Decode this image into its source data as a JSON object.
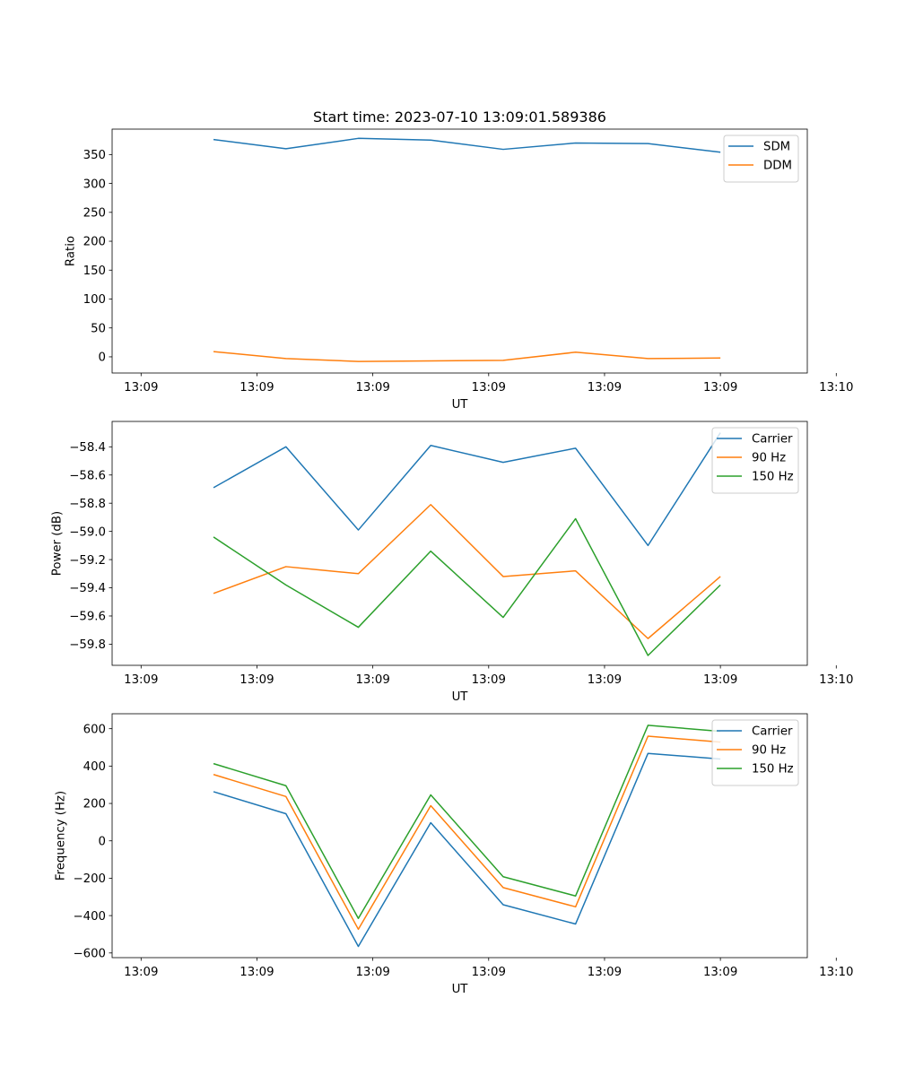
{
  "figure": {
    "title": "Start time: 2023-07-10 13:09:01.589386"
  },
  "chart_data": [
    {
      "type": "line",
      "xlabel": "UT",
      "ylabel": "Ratio",
      "x": [
        0.5,
        1.0,
        1.5,
        2.0,
        2.5,
        3.0,
        3.5,
        4.0
      ],
      "xlim": [
        -0.2,
        4.6
      ],
      "xticks": [
        0,
        0.8,
        1.6,
        2.4,
        3.2,
        4.0,
        4.8
      ],
      "xtick_labels": [
        "13:09",
        "13:09",
        "13:09",
        "13:09",
        "13:09",
        "13:09",
        "13:10"
      ],
      "ylim": [
        -28,
        394
      ],
      "yticks": [
        0,
        50,
        100,
        150,
        200,
        250,
        300,
        350
      ],
      "ytick_labels": [
        "0",
        "50",
        "100",
        "150",
        "200",
        "250",
        "300",
        "350"
      ],
      "legend": "top-right",
      "series": [
        {
          "name": "SDM",
          "color": "#1f77b4",
          "values": [
            376,
            360,
            378,
            375,
            359,
            370,
            369,
            354
          ]
        },
        {
          "name": "DDM",
          "color": "#ff7f0e",
          "values": [
            9,
            -3,
            -8,
            -7,
            -6,
            8,
            -3,
            -2
          ]
        }
      ]
    },
    {
      "type": "line",
      "xlabel": "UT",
      "ylabel": "Power (dB)",
      "x": [
        0.5,
        1.0,
        1.5,
        2.0,
        2.5,
        3.0,
        3.5,
        4.0
      ],
      "xlim": [
        -0.2,
        4.6
      ],
      "xticks": [
        0,
        0.8,
        1.6,
        2.4,
        3.2,
        4.0,
        4.8
      ],
      "xtick_labels": [
        "13:09",
        "13:09",
        "13:09",
        "13:09",
        "13:09",
        "13:09",
        "13:10"
      ],
      "ylim": [
        -59.95,
        -58.22
      ],
      "yticks": [
        -59.8,
        -59.6,
        -59.4,
        -59.2,
        -59.0,
        -58.8,
        -58.6,
        -58.4
      ],
      "ytick_labels": [
        "−59.8",
        "−59.6",
        "−59.4",
        "−59.2",
        "−59.0",
        "−58.8",
        "−58.6",
        "−58.4"
      ],
      "legend": "top-right",
      "series": [
        {
          "name": "Carrier",
          "color": "#1f77b4",
          "values": [
            -58.69,
            -58.4,
            -58.99,
            -58.39,
            -58.51,
            -58.41,
            -59.1,
            -58.3
          ]
        },
        {
          "name": "90 Hz",
          "color": "#ff7f0e",
          "values": [
            -59.44,
            -59.25,
            -59.3,
            -58.81,
            -59.32,
            -59.28,
            -59.76,
            -59.32
          ]
        },
        {
          "name": "150 Hz",
          "color": "#2ca02c",
          "values": [
            -59.04,
            -59.38,
            -59.68,
            -59.14,
            -59.61,
            -58.91,
            -59.88,
            -59.38
          ]
        }
      ]
    },
    {
      "type": "line",
      "xlabel": "UT",
      "ylabel": "Frequency (Hz)",
      "x": [
        0.5,
        1.0,
        1.5,
        2.0,
        2.5,
        3.0,
        3.5,
        4.0
      ],
      "xlim": [
        -0.2,
        4.6
      ],
      "xticks": [
        0,
        0.8,
        1.6,
        2.4,
        3.2,
        4.0,
        4.8
      ],
      "xtick_labels": [
        "13:09",
        "13:09",
        "13:09",
        "13:09",
        "13:09",
        "13:09",
        "13:10"
      ],
      "ylim": [
        -625,
        680
      ],
      "yticks": [
        -600,
        -400,
        -200,
        0,
        200,
        400,
        600
      ],
      "ytick_labels": [
        "−600",
        "−400",
        "−200",
        "0",
        "200",
        "400",
        "600"
      ],
      "legend": "top-right",
      "series": [
        {
          "name": "Carrier",
          "color": "#1f77b4",
          "values": [
            263,
            145,
            -565,
            97,
            -342,
            -445,
            468,
            438
          ]
        },
        {
          "name": "90 Hz",
          "color": "#ff7f0e",
          "values": [
            355,
            237,
            -473,
            188,
            -250,
            -353,
            560,
            528
          ]
        },
        {
          "name": "150 Hz",
          "color": "#2ca02c",
          "values": [
            413,
            295,
            -415,
            246,
            -192,
            -295,
            618,
            586
          ]
        }
      ]
    }
  ]
}
